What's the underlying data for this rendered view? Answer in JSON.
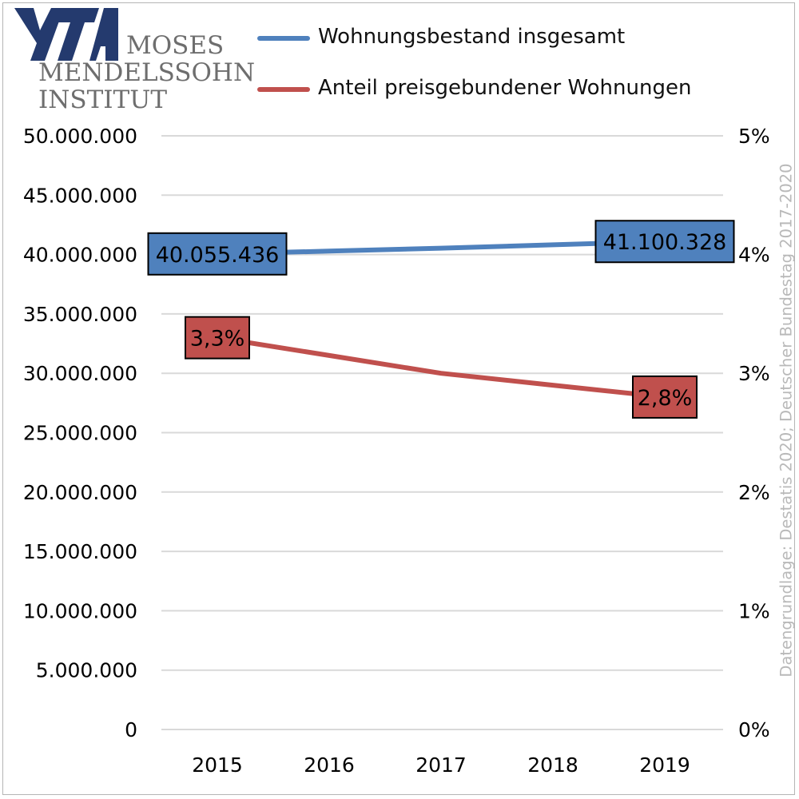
{
  "chart_data": {
    "type": "line",
    "categories": [
      "2015",
      "2016",
      "2017",
      "2018",
      "2019"
    ],
    "series": [
      {
        "name": "Wohnungsbestand insgesamt",
        "axis": "left",
        "color": "#4f81bd",
        "values": [
          40055436,
          40290000,
          40540000,
          40820000,
          41100328
        ],
        "labels": [
          {
            "index": 0,
            "text": "40.055.436"
          },
          {
            "index": 4,
            "text": "41.100.328"
          }
        ]
      },
      {
        "name": "Anteil preisgebundener Wohnungen",
        "axis": "right",
        "color": "#c0504d",
        "values": [
          3.3,
          3.15,
          3.0,
          2.9,
          2.8
        ],
        "labels": [
          {
            "index": 0,
            "text": "3,3%"
          },
          {
            "index": 4,
            "text": "2,8%"
          }
        ]
      }
    ],
    "y_left": {
      "range": [
        0,
        50000000
      ],
      "ticks": [
        "0",
        "5.000.000",
        "10.000.000",
        "15.000.000",
        "20.000.000",
        "25.000.000",
        "30.000.000",
        "35.000.000",
        "40.000.000",
        "45.000.000",
        "50.000.000"
      ]
    },
    "y_right": {
      "range": [
        0,
        5
      ],
      "ticks": [
        "0%",
        "1%",
        "2%",
        "3%",
        "4%",
        "5%"
      ]
    },
    "grid": true,
    "legend_position": "top"
  },
  "logo": {
    "lines": [
      "MOSES",
      "MENDELSSOHN",
      "INSTITUT"
    ],
    "color": "#243a6e"
  },
  "source": "Datengrundlage: Destatis 2020; Deutscher Bundestag 2017-2020"
}
